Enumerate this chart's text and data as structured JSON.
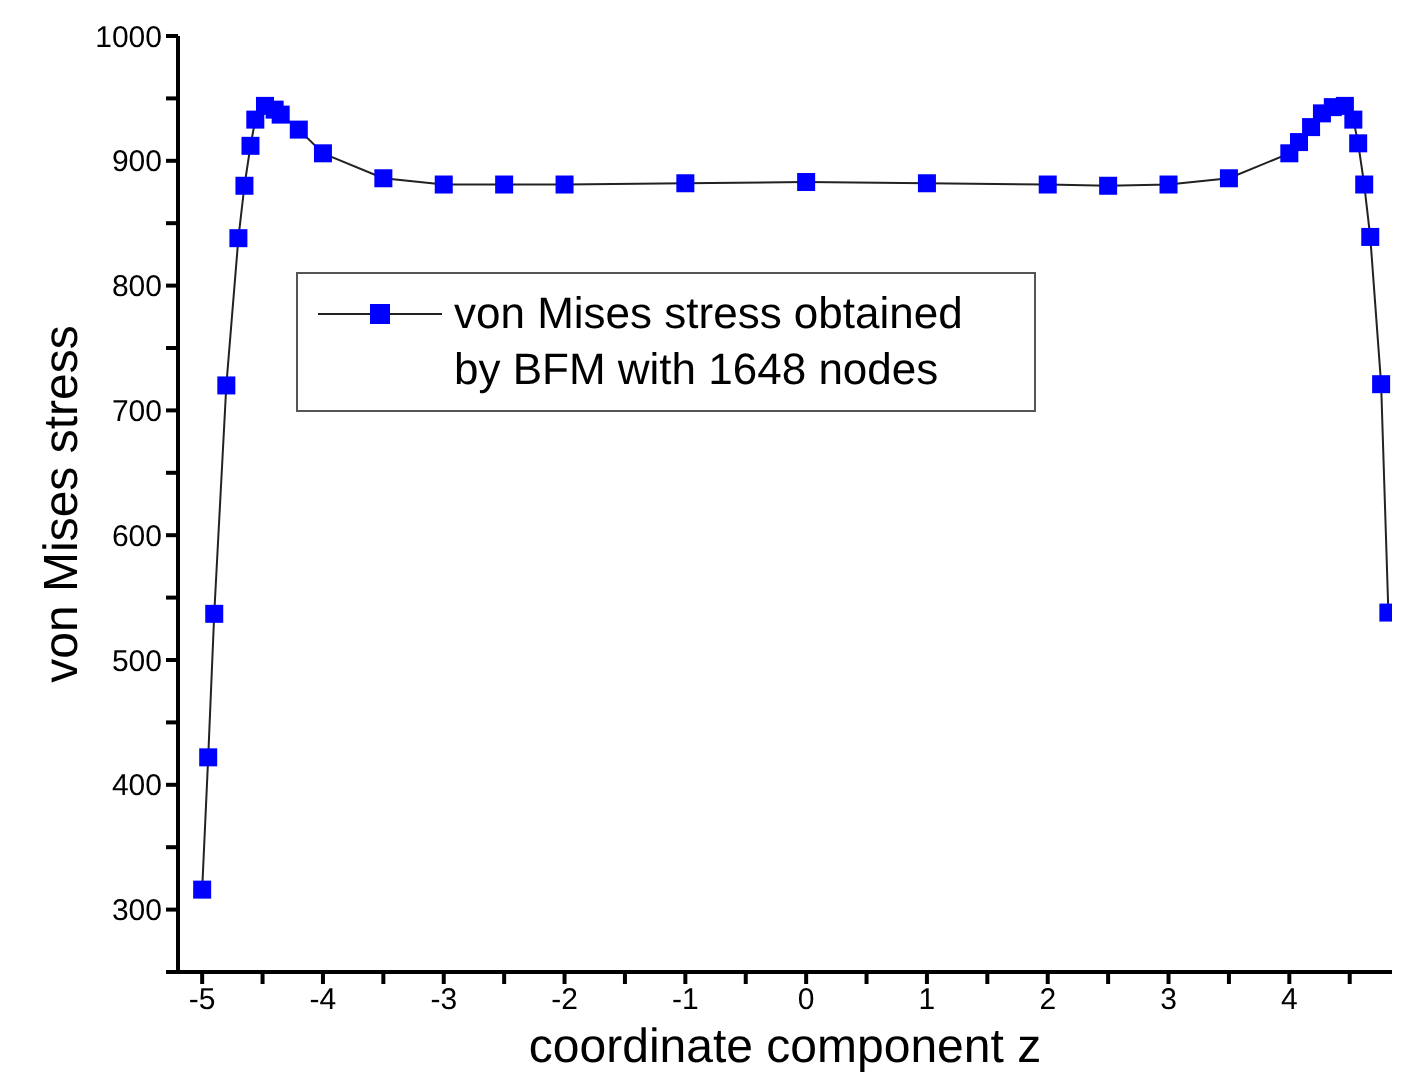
{
  "chart_data": {
    "type": "line",
    "xlabel": "coordinate component z",
    "ylabel": "von Mises stress",
    "x": [
      -5,
      -4.95,
      -4.9,
      -4.8,
      -4.7,
      -4.65,
      -4.6,
      -4.56,
      -4.48,
      -4.4,
      -4.35,
      -4.2,
      -4,
      -3.5,
      -3,
      -2.5,
      -2,
      -1,
      0,
      1,
      2,
      2.5,
      3,
      3.5,
      4,
      4.08,
      4.18,
      4.27,
      4.36,
      4.46,
      4.53,
      4.57,
      4.62,
      4.67,
      4.76,
      4.82
    ],
    "series": [
      {
        "name": "von Mises stress obtained by BFM with 1648 nodes",
        "color": "#0000ff",
        "values": [
          316,
          422,
          537,
          720,
          838,
          880,
          912,
          933,
          944,
          941,
          937,
          925,
          906,
          886,
          881,
          881,
          881,
          882,
          883,
          882,
          881,
          880,
          881,
          886,
          906,
          915,
          927,
          938,
          943,
          944,
          933,
          914,
          881,
          839,
          721,
          538
        ]
      }
    ],
    "xlim": [
      -5.2,
      4.85
    ],
    "xticks": [
      -5,
      {
        "value": -4.5,
        "label": null
      },
      -4,
      {
        "value": -3.5,
        "label": null
      },
      -3,
      {
        "value": -2.5,
        "label": null
      },
      -2,
      {
        "value": -1.5,
        "label": null
      },
      -1,
      {
        "value": -0.5,
        "label": null
      },
      0,
      {
        "value": 0.5,
        "label": null
      },
      1,
      {
        "value": 1.5,
        "label": null
      },
      2,
      {
        "value": 2.5,
        "label": null
      },
      3,
      {
        "value": 3.5,
        "label": null
      },
      4,
      {
        "value": 4.5,
        "label": null
      }
    ],
    "ylim": [
      250,
      1000
    ],
    "yticks": [
      {
        "value": 250,
        "label": null
      },
      300,
      {
        "value": 350,
        "label": null
      },
      400,
      {
        "value": 450,
        "label": null
      },
      500,
      {
        "value": 550,
        "label": null
      },
      600,
      {
        "value": 650,
        "label": null
      },
      700,
      {
        "value": 750,
        "label": null
      },
      800,
      {
        "value": 850,
        "label": null
      },
      900,
      {
        "value": 950,
        "label": null
      },
      1000
    ],
    "marker": "square",
    "line_style": "solid",
    "grid": false,
    "legend": "top left"
  }
}
